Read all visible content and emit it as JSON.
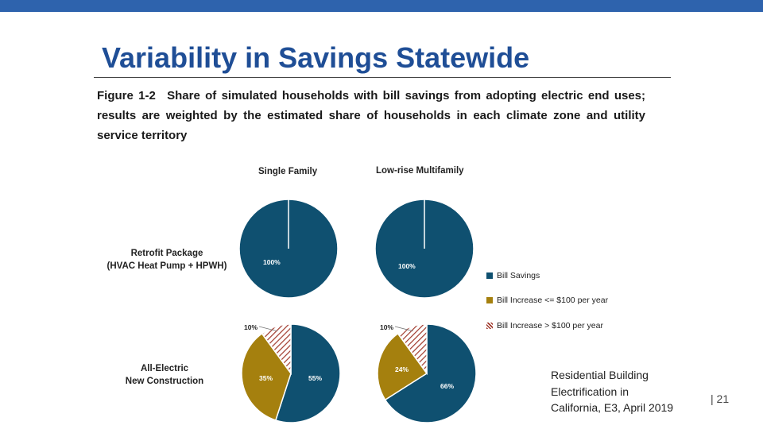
{
  "slide": {
    "title": "Variability in Savings Statewide",
    "figure_label": "Figure 1-2",
    "caption": "Share of simulated households with bill savings from adopting electric end uses; results are weighted by the estimated share of households in each climate zone and utility service territory",
    "source_line1": "Residential Building",
    "source_line2": "Electrification in",
    "source_line3": "California, E3, April 2019",
    "page_number": "| 21"
  },
  "chart_data": {
    "type": "pie",
    "columns": [
      "Single Family",
      "Low-rise Multifamily"
    ],
    "rows": [
      {
        "line1": "Retrofit Package",
        "line2": "(HVAC Heat Pump + HPWH)"
      },
      {
        "line1": "All-Electric",
        "line2": "New Construction"
      }
    ],
    "legend": [
      {
        "name": "Bill Savings",
        "color": "#0f5070",
        "pattern": "solid"
      },
      {
        "name": "Bill Increase <= $100 per year",
        "color": "#a5800e",
        "pattern": "solid"
      },
      {
        "name": "Bill Increase > $100 per year",
        "color": "#a0392c",
        "pattern": "hatched"
      }
    ],
    "charts": [
      {
        "row": "Retrofit Package (HVAC Heat Pump + HPWH)",
        "column": "Single Family",
        "slices": [
          {
            "series": "Bill Savings",
            "value": 100,
            "label": "100%"
          }
        ]
      },
      {
        "row": "Retrofit Package (HVAC Heat Pump + HPWH)",
        "column": "Low-rise Multifamily",
        "slices": [
          {
            "series": "Bill Savings",
            "value": 100,
            "label": "100%"
          }
        ]
      },
      {
        "row": "All-Electric New Construction",
        "column": "Single Family",
        "slices": [
          {
            "series": "Bill Savings",
            "value": 55,
            "label": "55%"
          },
          {
            "series": "Bill Increase <= $100 per year",
            "value": 35,
            "label": "35%"
          },
          {
            "series": "Bill Increase > $100 per year",
            "value": 10,
            "label": "10%"
          }
        ]
      },
      {
        "row": "All-Electric New Construction",
        "column": "Low-rise Multifamily",
        "slices": [
          {
            "series": "Bill Savings",
            "value": 66,
            "label": "66%"
          },
          {
            "series": "Bill Increase <= $100 per year",
            "value": 24,
            "label": "24%"
          },
          {
            "series": "Bill Increase > $100 per year",
            "value": 10,
            "label": "10%"
          }
        ]
      }
    ]
  }
}
